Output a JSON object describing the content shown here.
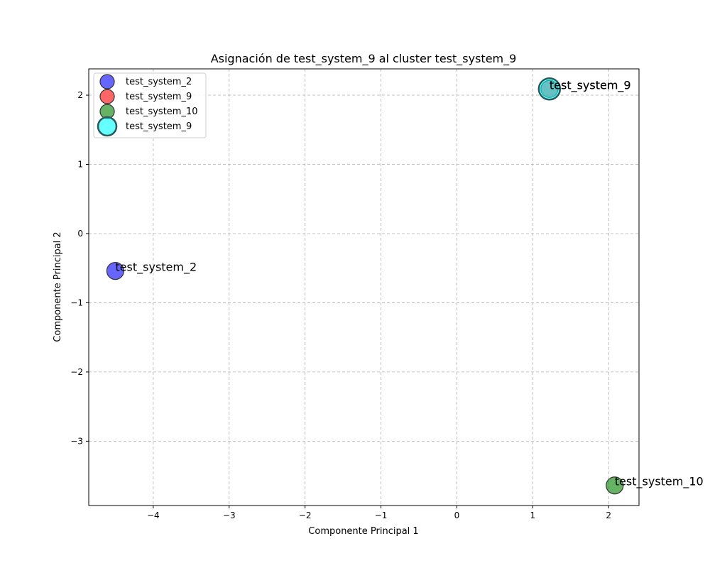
{
  "chart_data": {
    "type": "scatter",
    "title": "Asignación de test_system_9 al cluster test_system_9",
    "xlabel": "Componente Principal 1",
    "ylabel": "Componente Principal 2",
    "xlim": [
      -4.85,
      2.4
    ],
    "ylim": [
      -3.93,
      2.38
    ],
    "xticks": [
      -4,
      -3,
      -2,
      -1,
      0,
      1,
      2
    ],
    "yticks": [
      -3,
      -2,
      -1,
      0,
      1,
      2
    ],
    "grid": true,
    "legend_position": "upper-left",
    "series": [
      {
        "name": "test_system_2",
        "color": "#0000ff",
        "marker": "normal",
        "points": [
          {
            "x": -4.5,
            "y": -0.54,
            "label": "test_system_2"
          }
        ]
      },
      {
        "name": "test_system_9",
        "color": "#ff0000",
        "marker": "normal",
        "points": [
          {
            "x": 1.22,
            "y": 2.09,
            "label": "test_system_9"
          }
        ]
      },
      {
        "name": "test_system_10",
        "color": "#008000",
        "marker": "normal",
        "points": [
          {
            "x": 2.08,
            "y": -3.64,
            "label": "test_system_10"
          }
        ]
      },
      {
        "name": "test_system_9",
        "color": "#00ffff",
        "marker": "highlight",
        "points": [
          {
            "x": 1.22,
            "y": 2.09,
            "label": "test_system_9"
          }
        ]
      }
    ]
  }
}
